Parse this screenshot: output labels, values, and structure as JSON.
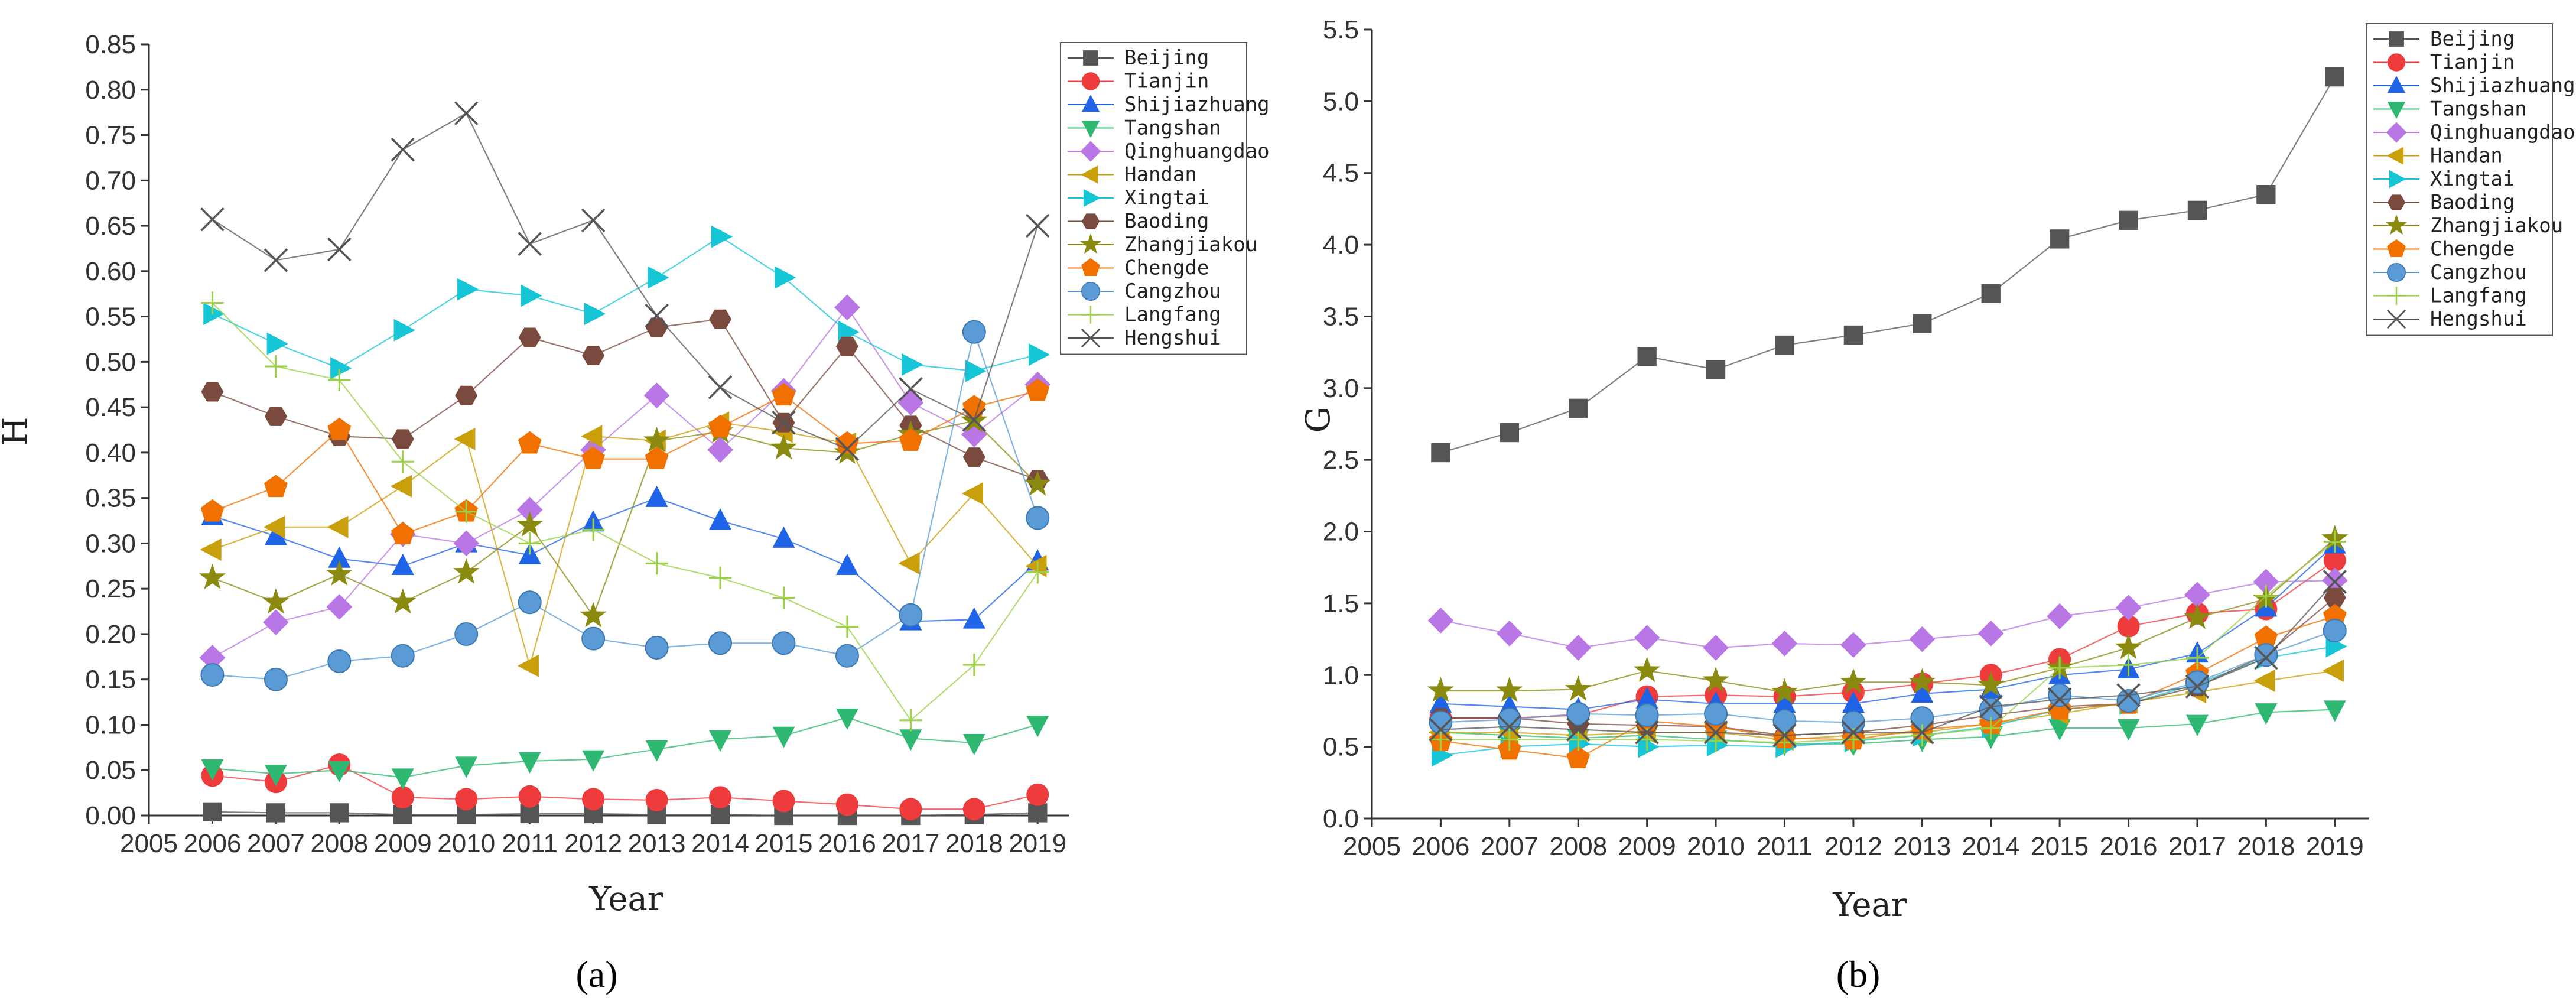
{
  "figure": {
    "panel_labels": [
      "(a)",
      "(b)"
    ],
    "colors": {
      "Beijing": "#555555",
      "Tianjin": "#ee3b3b",
      "Shijiazhuang": "#1f63e6",
      "Tangshan": "#2eb872",
      "Qinghuangdao": "#b977e6",
      "Handan": "#c9a00b",
      "Xingtai": "#16c6d6",
      "Baoding": "#7a4a3e",
      "Zhangjiakou": "#8a8a10",
      "Chengde": "#f07000",
      "Cangzhou": "#5b9bd5",
      "Langfang": "#9bd046",
      "Hengshui": "#555555"
    },
    "markers": {
      "Beijing": "square",
      "Tianjin": "circle",
      "Shijiazhuang": "triangle-up",
      "Tangshan": "triangle-down",
      "Qinghuangdao": "diamond",
      "Handan": "triangle-left",
      "Xingtai": "triangle-right",
      "Baoding": "hexagon",
      "Zhangjiakou": "star",
      "Chengde": "pentagon",
      "Cangzhou": "sphere",
      "Langfang": "plus",
      "Hengshui": "cross"
    }
  },
  "chart_data": [
    {
      "type": "line",
      "panel": "(a)",
      "xlabel": "Year",
      "ylabel": "H",
      "xlim": [
        2005,
        2019
      ],
      "ylim": [
        0,
        0.85
      ],
      "x_ticks": [
        2005,
        2006,
        2007,
        2008,
        2009,
        2010,
        2011,
        2012,
        2013,
        2014,
        2015,
        2016,
        2017,
        2018,
        2019
      ],
      "y_ticks": [
        "0.00",
        "0.05",
        "0.10",
        "0.15",
        "0.20",
        "0.25",
        "0.30",
        "0.35",
        "0.40",
        "0.45",
        "0.50",
        "0.55",
        "0.60",
        "0.65",
        "0.70",
        "0.75",
        "0.80",
        "0.85"
      ],
      "legend_position": "top-right",
      "x": [
        2006,
        2007,
        2008,
        2009,
        2010,
        2011,
        2012,
        2013,
        2014,
        2015,
        2016,
        2017,
        2018,
        2019
      ],
      "series": [
        {
          "name": "Beijing",
          "values": [
            0.004,
            0.003,
            0.003,
            0.001,
            0.001,
            0.002,
            0.002,
            0.001,
            0.001,
            0.0,
            0.0,
            0.0,
            0.001,
            0.003
          ]
        },
        {
          "name": "Tianjin",
          "values": [
            0.044,
            0.037,
            0.056,
            0.02,
            0.018,
            0.021,
            0.018,
            0.017,
            0.02,
            0.016,
            0.012,
            0.007,
            0.007,
            0.023
          ]
        },
        {
          "name": "Shijiazhuang",
          "values": [
            0.33,
            0.308,
            0.283,
            0.275,
            0.3,
            0.287,
            0.323,
            0.35,
            0.325,
            0.305,
            0.275,
            0.214,
            0.216,
            0.28
          ]
        },
        {
          "name": "Tangshan",
          "values": [
            0.052,
            0.046,
            0.05,
            0.042,
            0.055,
            0.06,
            0.062,
            0.073,
            0.084,
            0.088,
            0.108,
            0.085,
            0.08,
            0.1
          ]
        },
        {
          "name": "Qinghuangdao",
          "values": [
            0.174,
            0.213,
            0.23,
            0.31,
            0.3,
            0.337,
            0.403,
            0.463,
            0.403,
            0.468,
            0.56,
            0.455,
            0.42,
            0.475
          ]
        },
        {
          "name": "Handan",
          "values": [
            0.293,
            0.318,
            0.318,
            0.363,
            0.415,
            0.165,
            0.418,
            0.413,
            0.433,
            0.423,
            0.41,
            0.278,
            0.355,
            0.275
          ]
        },
        {
          "name": "Xingtai",
          "values": [
            0.553,
            0.52,
            0.493,
            0.535,
            0.58,
            0.573,
            0.553,
            0.593,
            0.638,
            0.593,
            0.533,
            0.497,
            0.49,
            0.508
          ]
        },
        {
          "name": "Baoding",
          "values": [
            0.467,
            0.44,
            0.418,
            0.415,
            0.463,
            0.527,
            0.507,
            0.538,
            0.547,
            0.433,
            0.517,
            0.43,
            0.395,
            0.37
          ]
        },
        {
          "name": "Zhangjiakou",
          "values": [
            0.262,
            0.235,
            0.266,
            0.235,
            0.268,
            0.32,
            0.22,
            0.413,
            0.423,
            0.405,
            0.4,
            0.42,
            0.435,
            0.365
          ]
        },
        {
          "name": "Chengde",
          "values": [
            0.335,
            0.362,
            0.425,
            0.31,
            0.335,
            0.41,
            0.393,
            0.393,
            0.428,
            0.463,
            0.41,
            0.413,
            0.45,
            0.468
          ]
        },
        {
          "name": "Cangzhou",
          "values": [
            0.155,
            0.15,
            0.17,
            0.176,
            0.2,
            0.235,
            0.195,
            0.185,
            0.19,
            0.19,
            0.176,
            0.221,
            0.533,
            0.328
          ]
        },
        {
          "name": "Langfang",
          "values": [
            0.565,
            0.495,
            0.48,
            0.39,
            0.335,
            0.3,
            0.315,
            0.278,
            0.262,
            0.24,
            0.208,
            0.105,
            0.166,
            0.268
          ]
        },
        {
          "name": "Hengshui",
          "values": [
            0.657,
            0.612,
            0.624,
            0.734,
            0.774,
            0.63,
            0.656,
            0.551,
            0.472,
            0.433,
            0.404,
            0.47,
            0.436,
            0.65
          ]
        }
      ]
    },
    {
      "type": "line",
      "panel": "(b)",
      "xlabel": "Year",
      "ylabel": "G",
      "xlim": [
        2005,
        2019
      ],
      "ylim": [
        0,
        5.5
      ],
      "x_ticks": [
        2005,
        2006,
        2007,
        2008,
        2009,
        2010,
        2011,
        2012,
        2013,
        2014,
        2015,
        2016,
        2017,
        2018,
        2019
      ],
      "y_ticks": [
        "0.0",
        "0.5",
        "1.0",
        "1.5",
        "2.0",
        "2.5",
        "3.0",
        "3.5",
        "4.0",
        "4.5",
        "5.0",
        "5.5"
      ],
      "legend_position": "top-right",
      "x": [
        2006,
        2007,
        2008,
        2009,
        2010,
        2011,
        2012,
        2013,
        2014,
        2015,
        2016,
        2017,
        2018,
        2019
      ],
      "series": [
        {
          "name": "Beijing",
          "values": [
            2.55,
            2.69,
            2.86,
            3.22,
            3.13,
            3.3,
            3.37,
            3.45,
            3.66,
            4.04,
            4.17,
            4.24,
            4.35,
            5.17
          ]
        },
        {
          "name": "Tianjin",
          "values": [
            0.7,
            0.7,
            0.72,
            0.85,
            0.86,
            0.85,
            0.88,
            0.94,
            1.0,
            1.11,
            1.34,
            1.43,
            1.46,
            1.8
          ]
        },
        {
          "name": "Shijiazhuang",
          "values": [
            0.8,
            0.78,
            0.76,
            0.83,
            0.8,
            0.8,
            0.8,
            0.87,
            0.9,
            1.0,
            1.04,
            1.15,
            1.47,
            1.91
          ]
        },
        {
          "name": "Tangshan",
          "values": [
            0.6,
            0.58,
            0.56,
            0.58,
            0.55,
            0.52,
            0.52,
            0.55,
            0.57,
            0.63,
            0.63,
            0.66,
            0.74,
            0.76
          ]
        },
        {
          "name": "Qinghuangdao",
          "values": [
            1.38,
            1.29,
            1.19,
            1.26,
            1.19,
            1.22,
            1.21,
            1.25,
            1.29,
            1.41,
            1.47,
            1.56,
            1.65,
            1.66
          ]
        },
        {
          "name": "Handan",
          "values": [
            0.6,
            0.6,
            0.58,
            0.6,
            0.6,
            0.55,
            0.58,
            0.6,
            0.66,
            0.73,
            0.81,
            0.88,
            0.96,
            1.03
          ]
        },
        {
          "name": "Xingtai",
          "values": [
            0.44,
            0.5,
            0.52,
            0.5,
            0.51,
            0.5,
            0.54,
            0.58,
            0.64,
            0.76,
            0.8,
            0.94,
            1.12,
            1.2
          ]
        },
        {
          "name": "Baoding",
          "values": [
            0.7,
            0.7,
            0.66,
            0.65,
            0.64,
            0.58,
            0.6,
            0.65,
            0.72,
            0.78,
            0.8,
            0.92,
            1.14,
            1.54
          ]
        },
        {
          "name": "Zhangjiakou",
          "values": [
            0.89,
            0.89,
            0.9,
            1.03,
            0.96,
            0.88,
            0.95,
            0.95,
            0.93,
            1.05,
            1.19,
            1.4,
            1.53,
            1.95
          ]
        },
        {
          "name": "Chengde",
          "values": [
            0.54,
            0.48,
            0.42,
            0.68,
            0.64,
            0.56,
            0.55,
            0.62,
            0.66,
            0.76,
            0.8,
            1.01,
            1.26,
            1.41
          ]
        },
        {
          "name": "Cangzhou",
          "values": [
            0.67,
            0.69,
            0.73,
            0.72,
            0.73,
            0.68,
            0.67,
            0.7,
            0.76,
            0.86,
            0.82,
            0.95,
            1.14,
            1.31
          ]
        },
        {
          "name": "Langfang",
          "values": [
            0.55,
            0.55,
            0.55,
            0.55,
            0.54,
            0.53,
            0.55,
            0.58,
            0.63,
            1.05,
            1.07,
            1.12,
            1.55,
            1.93
          ]
        },
        {
          "name": "Hengshui",
          "values": [
            0.62,
            0.64,
            0.62,
            0.6,
            0.6,
            0.58,
            0.6,
            0.6,
            0.78,
            0.83,
            0.86,
            0.92,
            1.12,
            1.65
          ]
        }
      ]
    }
  ]
}
